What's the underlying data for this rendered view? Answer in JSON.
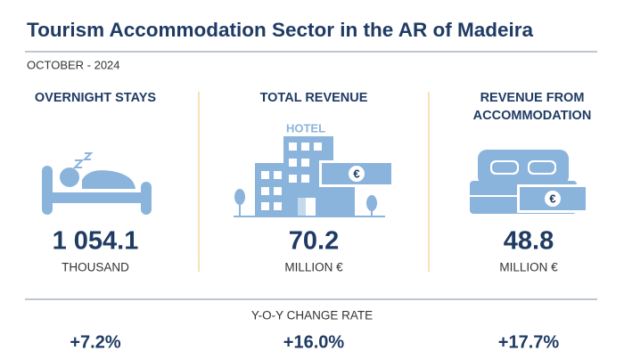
{
  "header": {
    "title": "Tourism Accommodation Sector in the AR of Madeira",
    "subtitle": "OCTOBER - 2024"
  },
  "metrics": [
    {
      "label": "OVERNIGHT STAYS",
      "value": "1 054.1",
      "unit": "THOUSAND",
      "change": "+7.2%"
    },
    {
      "label": "TOTAL REVENUE",
      "value": "70.2",
      "unit": "MILLION €",
      "change": "+16.0%"
    },
    {
      "label_lines": [
        "REVENUE FROM",
        "ACCOMMODATION"
      ],
      "value": "48.8",
      "unit": "MILLION €",
      "change": "+17.7%"
    }
  ],
  "change_heading": "Y-O-Y CHANGE RATE",
  "icons": {
    "hotel_sign": "HOTEL",
    "euro": "€"
  }
}
